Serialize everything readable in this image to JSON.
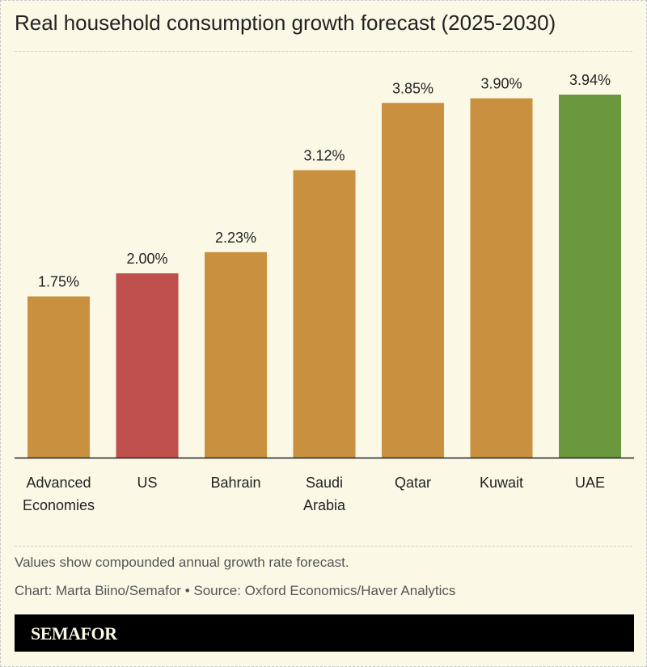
{
  "chart_data": {
    "type": "bar",
    "title": "Real household consumption growth forecast (2025-2030)",
    "categories": [
      [
        "Advanced",
        "Economies"
      ],
      [
        "US"
      ],
      [
        "Bahrain"
      ],
      [
        "Saudi",
        "Arabia"
      ],
      [
        "Qatar"
      ],
      [
        "Kuwait"
      ],
      [
        "UAE"
      ]
    ],
    "values": [
      1.75,
      2.0,
      2.23,
      3.12,
      3.85,
      3.9,
      3.94
    ],
    "data_labels": [
      "1.75%",
      "2.00%",
      "2.23%",
      "3.12%",
      "3.85%",
      "3.90%",
      "3.94%"
    ],
    "colors": [
      "#c9913f",
      "#c0504d",
      "#c9913f",
      "#c9913f",
      "#c9913f",
      "#c9913f",
      "#6b983e"
    ],
    "ylim": [
      0,
      3.94
    ],
    "grid": false,
    "xlabel": "",
    "ylabel": ""
  },
  "notes": {
    "description": "Values show compounded annual growth rate forecast.",
    "credit": "Chart: Marta Biino/Semafor • Source: Oxford Economics/Haver Analytics"
  },
  "brand": {
    "logo": "SEMAFOR"
  }
}
